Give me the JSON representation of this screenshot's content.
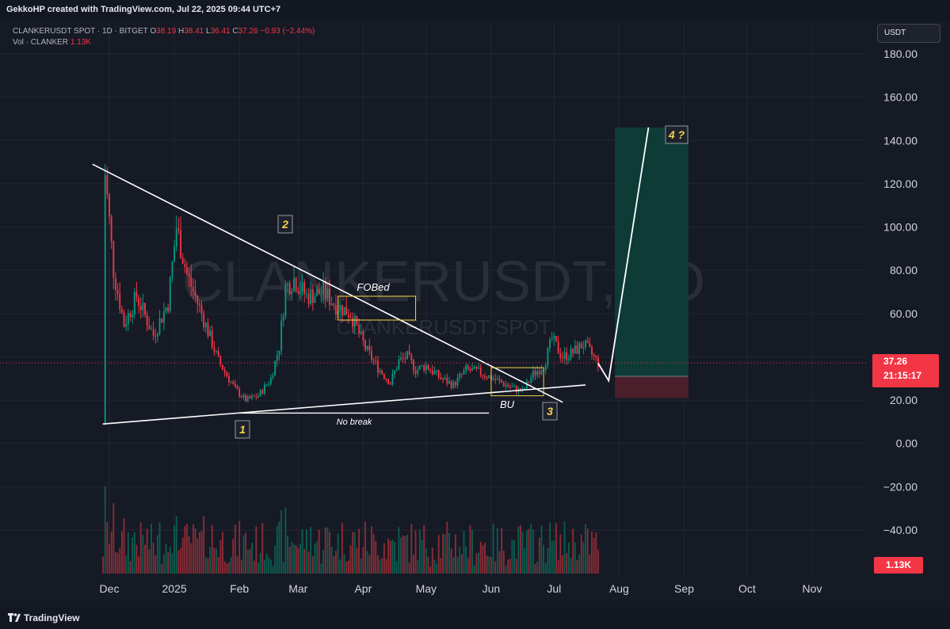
{
  "header": {
    "credit": "GekkoHP created with TradingView.com, Jul 22, 2025 09:44 UTC+7"
  },
  "legend": {
    "symbol": "CLANKERUSDT SPOT · 1D · BITGET",
    "o_label": "O",
    "o_value": "38.19",
    "h_label": "H",
    "h_value": "38.41",
    "l_label": "L",
    "l_value": "36.41",
    "c_label": "C",
    "c_value": "37.26",
    "change": "−0.93 (−2.44%)",
    "vol_label": "Vol · CLANKER",
    "vol_value": "1.13K"
  },
  "watermark": {
    "main": "CLANKERUSDT, 1D",
    "sub": "CLANKERUSDT SPOT"
  },
  "currency": "USDT",
  "last_price": {
    "price": "37.26",
    "countdown": "21:15:17"
  },
  "volume_tag": "1.13K",
  "footer": {
    "brand": "TradingView"
  },
  "colors": {
    "up": "#089981",
    "down": "#f23645",
    "annotation": "#f5d547",
    "background": "#161a25"
  },
  "chart_data": {
    "type": "candlestick",
    "symbol": "CLANKERUSDT",
    "timeframe": "1D",
    "yaxis": {
      "ticks": [
        "180.00",
        "160.00",
        "140.00",
        "120.00",
        "100.00",
        "80.00",
        "60.00",
        "40.00",
        "20.00",
        "0.00",
        "−20.00",
        "−40.00"
      ],
      "range": [
        -57,
        190
      ]
    },
    "xaxis": {
      "ticks": [
        "Dec",
        "2025",
        "Feb",
        "Mar",
        "Apr",
        "May",
        "Jun",
        "Jul",
        "Aug",
        "Sep",
        "Oct",
        "Nov"
      ],
      "range": [
        "2024-11-26",
        "2025-11-20"
      ]
    },
    "last_close": 37.26,
    "price_path": [
      [
        "2024-11-28",
        9
      ],
      [
        "2024-11-29",
        125
      ],
      [
        "2024-12-03",
        80
      ],
      [
        "2024-12-08",
        55
      ],
      [
        "2024-12-14",
        68
      ],
      [
        "2024-12-22",
        50
      ],
      [
        "2024-12-29",
        65
      ],
      [
        "2025-01-02",
        100
      ],
      [
        "2025-01-07",
        78
      ],
      [
        "2025-01-14",
        60
      ],
      [
        "2025-01-22",
        38
      ],
      [
        "2025-01-30",
        25
      ],
      [
        "2025-02-04",
        20
      ],
      [
        "2025-02-10",
        22
      ],
      [
        "2025-02-16",
        30
      ],
      [
        "2025-02-20",
        45
      ],
      [
        "2025-02-23",
        72
      ],
      [
        "2025-02-27",
        76
      ],
      [
        "2025-03-05",
        68
      ],
      [
        "2025-03-13",
        70
      ],
      [
        "2025-03-19",
        64
      ],
      [
        "2025-03-26",
        60
      ],
      [
        "2025-04-02",
        44
      ],
      [
        "2025-04-08",
        35
      ],
      [
        "2025-04-14",
        28
      ],
      [
        "2025-04-18",
        38
      ],
      [
        "2025-04-22",
        40
      ],
      [
        "2025-04-26",
        34
      ],
      [
        "2025-05-01",
        36
      ],
      [
        "2025-05-08",
        30
      ],
      [
        "2025-05-14",
        27
      ],
      [
        "2025-05-20",
        34
      ],
      [
        "2025-05-26",
        33
      ],
      [
        "2025-06-02",
        30
      ],
      [
        "2025-06-10",
        26
      ],
      [
        "2025-06-16",
        24
      ],
      [
        "2025-06-21",
        32
      ],
      [
        "2025-06-26",
        36
      ],
      [
        "2025-06-30",
        48
      ],
      [
        "2025-07-05",
        40
      ],
      [
        "2025-07-10",
        42
      ],
      [
        "2025-07-15",
        46
      ],
      [
        "2025-07-22",
        37.26
      ]
    ],
    "volume": {
      "label": "Vol · CLANKER",
      "last": "1.13K"
    },
    "annotations": {
      "labels": [
        "1",
        "2",
        "3",
        "4 ?",
        "FOBed",
        "No break",
        "BU"
      ],
      "descending_trendline": {
        "from": [
          "2024-11-26",
          129
        ],
        "to": [
          "2025-06-20",
          19
        ]
      },
      "ascending_trendline": {
        "from": [
          "2024-11-28",
          9
        ],
        "to": [
          "2025-07-16",
          27
        ]
      },
      "no_break_level": 14,
      "zones": [
        {
          "from": "2025-03-20",
          "to": "2025-04-26",
          "low": 57,
          "high": 68,
          "color": "#f5d547"
        },
        {
          "from": "2025-06-01",
          "to": "2025-06-26",
          "low": 22,
          "high": 35,
          "color": "#f5d547"
        }
      ],
      "long_position": {
        "from": "2025-07-30",
        "to": "2025-09-03",
        "entry": 31,
        "stop": 21,
        "target": 146
      },
      "projection": [
        [
          "2025-07-22",
          37
        ],
        [
          "2025-07-27",
          29
        ],
        [
          "2025-08-15",
          146
        ]
      ]
    }
  }
}
